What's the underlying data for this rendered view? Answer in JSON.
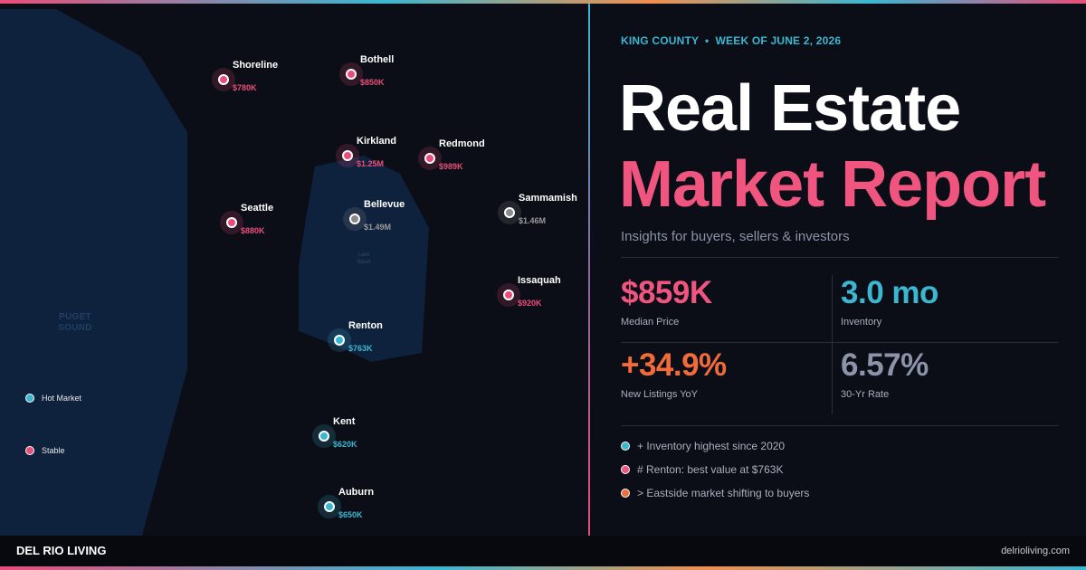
{
  "map": {
    "water_label": [
      "PUGET",
      "SOUND"
    ],
    "lake_label": [
      "Lake",
      "Wash"
    ],
    "cities": [
      {
        "name": "Shoreline",
        "price": "$780K",
        "status": "stable"
      },
      {
        "name": "Bothell",
        "price": "$850K",
        "status": "stable"
      },
      {
        "name": "Kirkland",
        "price": "$1.25M",
        "status": "stable"
      },
      {
        "name": "Redmond",
        "price": "$989K",
        "status": "stable"
      },
      {
        "name": "Seattle",
        "price": "$880K",
        "status": "stable"
      },
      {
        "name": "Bellevue",
        "price": "$1.49M",
        "status": "neutral"
      },
      {
        "name": "Sammamish",
        "price": "$1.46M",
        "status": "neutral"
      },
      {
        "name": "Issaquah",
        "price": "$920K",
        "status": "stable"
      },
      {
        "name": "Renton",
        "price": "$763K",
        "status": "hot"
      },
      {
        "name": "Kent",
        "price": "$620K",
        "status": "hot"
      },
      {
        "name": "Auburn",
        "price": "$650K",
        "status": "hot"
      }
    ],
    "legend": [
      {
        "label": "Hot Market",
        "color": "#3bb7d1"
      },
      {
        "label": "Stable",
        "color": "#e94e7a"
      }
    ]
  },
  "report": {
    "eyebrow": "KING COUNTY  •  WEEK OF JUNE 2, 2026",
    "title_line1": "Real Estate",
    "title_line2": "Market Report",
    "subtitle": "Insights for buyers, sellers & investors",
    "stats": [
      {
        "value": "$859K",
        "label": "Median Price",
        "color": "#f0557f"
      },
      {
        "value": "3.0 mo",
        "label": "Inventory",
        "color": "#3bb7d1"
      },
      {
        "value": "+34.9%",
        "label": "New Listings YoY",
        "color": "#f26b3a"
      },
      {
        "value": "6.57%",
        "label": "30-Yr Rate",
        "color": "#8d93a8"
      }
    ],
    "insights": [
      {
        "text": "+ Inventory highest since 2020",
        "color": "#3bb7d1"
      },
      {
        "text": "# Renton: best value at $763K",
        "color": "#f0557f"
      },
      {
        "text": "> Eastside market shifting to buyers",
        "color": "#f26b3a"
      }
    ]
  },
  "footer": {
    "brand": "DEL RIO LIVING",
    "site": "delrioliving.com"
  }
}
